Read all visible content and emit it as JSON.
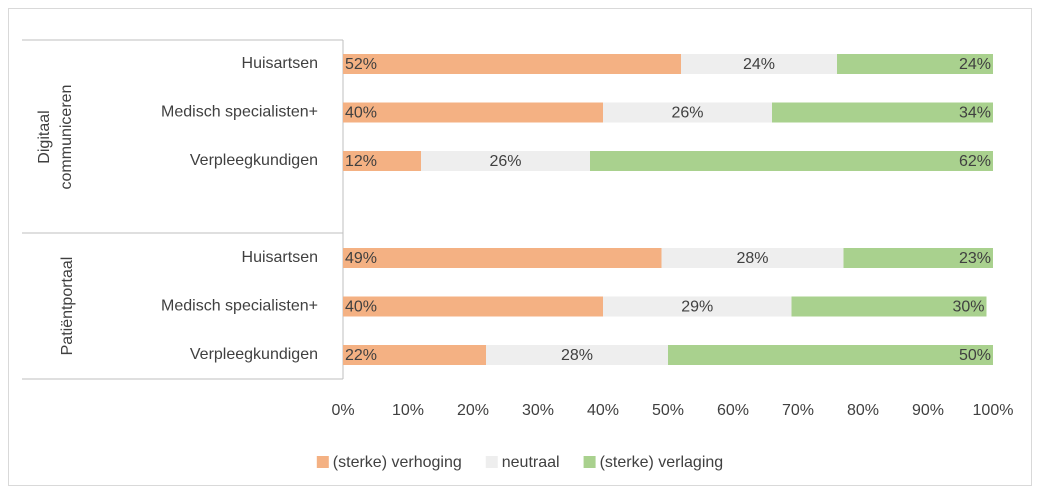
{
  "chart_data": {
    "type": "stacked_bar_horizontal",
    "groups": [
      "Digitaal communiceren",
      "Patiëntportaal"
    ],
    "categories": [
      "Huisartsen",
      "Medisch specialisten+",
      "Verpleegkundigen",
      "Huisartsen",
      "Medisch specialisten+",
      "Verpleegkundigen"
    ],
    "series": [
      {
        "name": "(sterke) verhoging",
        "color": "#f4b183",
        "values": [
          52,
          40,
          12,
          49,
          40,
          22
        ],
        "value_labels": [
          "52%",
          "40%",
          "12%",
          "49%",
          "40%",
          "22%"
        ]
      },
      {
        "name": "neutraal",
        "color": "#eeeeee",
        "values": [
          24,
          26,
          26,
          28,
          29,
          28
        ],
        "value_labels": [
          "24%",
          "26%",
          "26%",
          "28%",
          "29%",
          "28%"
        ]
      },
      {
        "name": "(sterke) verlaging",
        "color": "#a9d18e",
        "values": [
          24,
          34,
          62,
          23,
          30,
          50
        ],
        "value_labels": [
          "24%",
          "34%",
          "62%",
          "23%",
          "30%",
          "50%"
        ]
      }
    ],
    "xlim": [
      0,
      100
    ],
    "xticks": [
      {
        "value": 0,
        "label": "0%"
      },
      {
        "value": 10,
        "label": "10%"
      },
      {
        "value": 20,
        "label": "20%"
      },
      {
        "value": 30,
        "label": "30%"
      },
      {
        "value": 40,
        "label": "40%"
      },
      {
        "value": 50,
        "label": "50%"
      },
      {
        "value": 60,
        "label": "60%"
      },
      {
        "value": 70,
        "label": "70%"
      },
      {
        "value": 80,
        "label": "80%"
      },
      {
        "value": 90,
        "label": "90%"
      },
      {
        "value": 100,
        "label": "100%"
      }
    ],
    "legend": "bottom"
  }
}
